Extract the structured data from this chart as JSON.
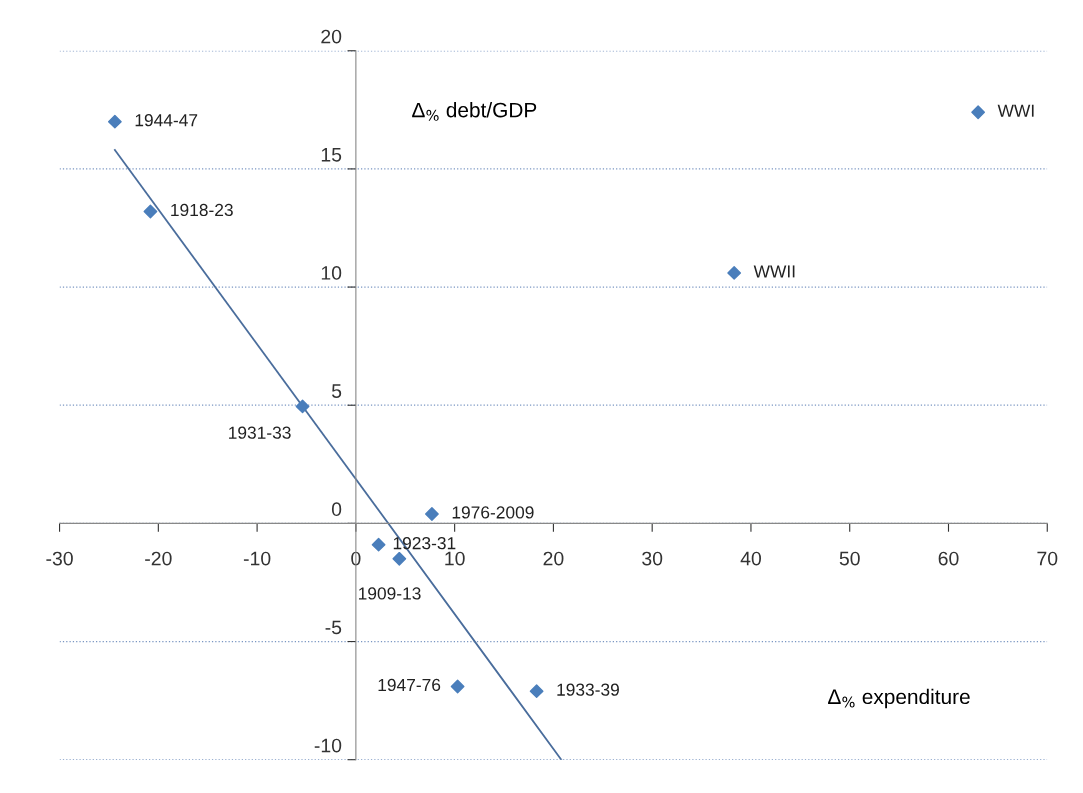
{
  "chart_data": {
    "type": "scatter",
    "xlabel": "Δ$_{%}$ expenditure",
    "ylabel": "Δ$_{%}$ debt/GDP",
    "series": [
      {
        "type": "scatter",
        "color": "#4a7ebb",
        "marker": "diamond",
        "x": [
          -24.4,
          -20.8,
          -5.4,
          7.7,
          2.3,
          4.4,
          10.3,
          18.3,
          38.3,
          63.0
        ],
        "values": [
          17.0,
          13.2,
          4.95,
          0.4,
          -0.9,
          -1.5,
          -6.9,
          -7.1,
          10.6,
          17.4
        ]
      },
      {
        "type": "line",
        "color": "#4a6d9c",
        "marker": "none",
        "x": [
          -24.4,
          20.8
        ],
        "values": [
          15.8,
          -10.0
        ]
      }
    ],
    "annotations": [
      {
        "text": "1944-47",
        "x": -24.4,
        "y": 17.0
      },
      {
        "text": "1918-23",
        "x": -20.8,
        "y": 13.2
      },
      {
        "text": "1931-33",
        "x": -5.4,
        "y": 4.95
      },
      {
        "text": "1976-2009",
        "x": 7.7,
        "y": 0.4
      },
      {
        "text": "1923-31",
        "x": 2.3,
        "y": -0.9
      },
      {
        "text": "1909-13",
        "x": 4.4,
        "y": -1.5
      },
      {
        "text": "1947-76",
        "x": 10.3,
        "y": -6.9
      },
      {
        "text": "1933-39",
        "x": 18.3,
        "y": -7.1
      },
      {
        "text": "WWII",
        "x": 38.3,
        "y": 10.6
      },
      {
        "text": "WWI",
        "x": 63.0,
        "y": 17.4
      }
    ],
    "xlim": [
      -30,
      70
    ],
    "xticks": [
      -30,
      -20,
      -10,
      0,
      10,
      20,
      30,
      40,
      50,
      60,
      70
    ],
    "ylim": [
      -10,
      20
    ],
    "yticks": [
      -10,
      -5,
      0,
      5,
      10,
      15,
      20
    ],
    "grid": "y",
    "legend": false
  }
}
